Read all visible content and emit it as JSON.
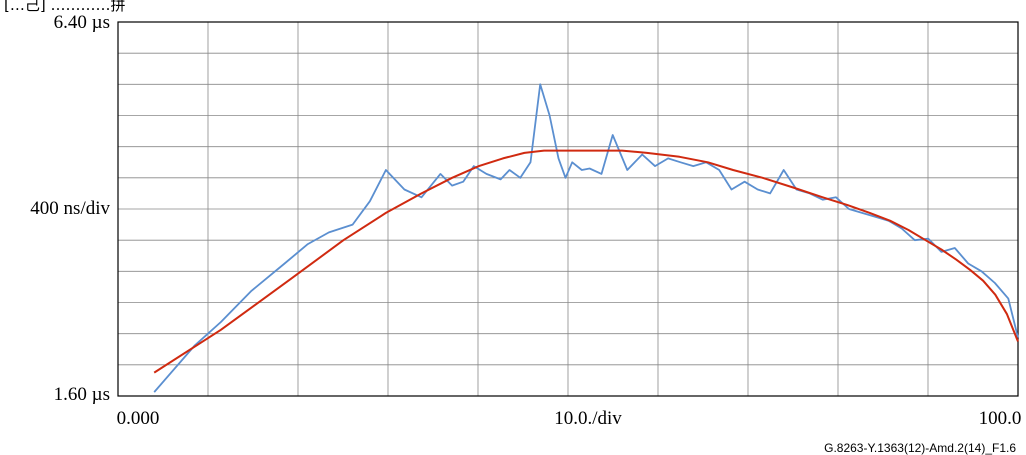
{
  "title_fragment": "[…己]   …………拼",
  "figure_id": "G.8263-Y.1363(12)-Amd.2(14)_F1.6",
  "chart_data": {
    "type": "line",
    "y_tick_labels": [
      "6.40 µs",
      "400 ns/div",
      "1.60 µs"
    ],
    "x_tick_labels": [
      "0.000",
      "10.0./div",
      "100.0"
    ],
    "ylim": [
      1.6,
      6.4
    ],
    "xlim": [
      0,
      100
    ],
    "x_scale": "log-like",
    "grid": true,
    "colors": {
      "measured": "#5b8fd0",
      "fit": "#d02a10",
      "grid": "#888888"
    },
    "series": [
      {
        "key": "measured",
        "x": [
          0.3,
          0.7,
          1,
          1.4,
          1.9,
          2.3,
          2.7,
          3.2,
          3.6,
          4,
          4.5,
          5,
          5.6,
          6,
          6.4,
          6.8,
          7.3,
          7.9,
          8.3,
          8.8,
          9.3,
          9.8,
          10.3,
          10.8,
          11.2,
          11.6,
          12.2,
          12.7,
          13.5,
          14.3,
          15.4,
          16.6,
          17.7,
          18.9,
          20.1,
          21.4,
          22.8,
          24.3,
          25.8,
          27.5,
          29.3,
          31.1,
          33.2,
          35.3,
          37.6,
          40,
          42.6,
          45.3,
          48.2,
          51.3,
          54.6,
          58.1,
          61.8,
          65.8,
          70,
          74.5,
          79.3,
          84.4,
          89.8,
          95.6,
          100
        ],
        "y": [
          1.65,
          2.25,
          2.55,
          2.95,
          3.3,
          3.55,
          3.7,
          3.8,
          4.1,
          4.5,
          4.25,
          4.15,
          4.45,
          4.3,
          4.35,
          4.55,
          4.45,
          4.38,
          4.5,
          4.4,
          4.6,
          5.6,
          5.2,
          4.65,
          4.4,
          4.6,
          4.5,
          4.52,
          4.45,
          4.95,
          4.5,
          4.7,
          4.55,
          4.65,
          4.6,
          4.55,
          4.6,
          4.5,
          4.25,
          4.35,
          4.25,
          4.2,
          4.5,
          4.25,
          4.2,
          4.12,
          4.15,
          4.0,
          3.95,
          3.9,
          3.85,
          3.75,
          3.6,
          3.62,
          3.45,
          3.5,
          3.3,
          3.2,
          3.05,
          2.85,
          2.35
        ]
      },
      {
        "key": "fit",
        "x": [
          0.3,
          1,
          2,
          3,
          4,
          5,
          6,
          7,
          8,
          9,
          10,
          11,
          12,
          13,
          14,
          15,
          17,
          20,
          23,
          26,
          30,
          35,
          40,
          45,
          50,
          55,
          60,
          65,
          70,
          75,
          80,
          85,
          90,
          95,
          100
        ],
        "y": [
          1.9,
          2.45,
          3.1,
          3.6,
          3.95,
          4.2,
          4.4,
          4.55,
          4.65,
          4.72,
          4.75,
          4.75,
          4.75,
          4.75,
          4.75,
          4.75,
          4.72,
          4.67,
          4.6,
          4.5,
          4.4,
          4.27,
          4.15,
          4.05,
          3.95,
          3.85,
          3.73,
          3.6,
          3.48,
          3.35,
          3.22,
          3.08,
          2.9,
          2.65,
          2.3
        ]
      }
    ]
  }
}
